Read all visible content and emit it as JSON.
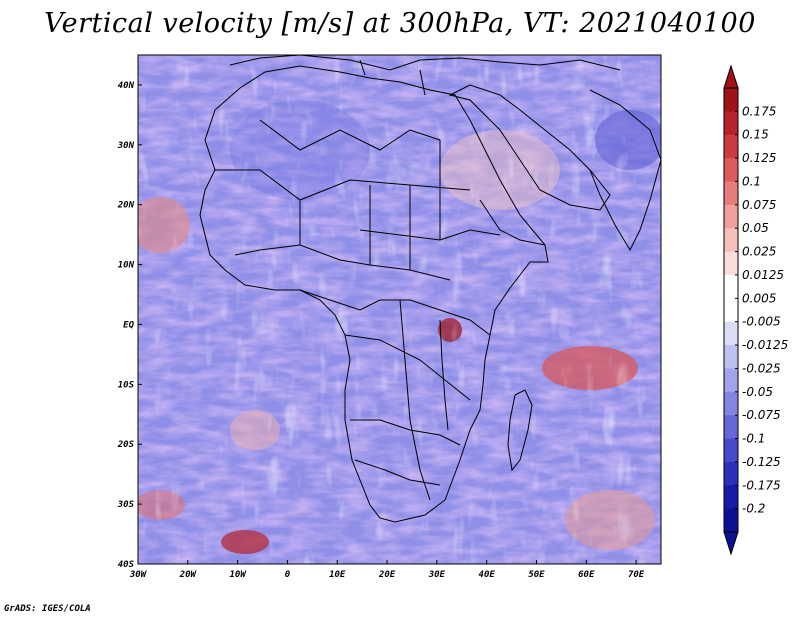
{
  "title": "Vertical velocity [m/s] at 300hPa, VT: 2021040100",
  "credit": "GrADS: IGES/COLA",
  "map": {
    "lat_labels": [
      "40N",
      "30N",
      "20N",
      "10N",
      "EQ",
      "10S",
      "20S",
      "30S",
      "40S"
    ],
    "lon_labels": [
      "30W",
      "20W",
      "10W",
      "0",
      "10E",
      "20E",
      "30E",
      "40E",
      "50E",
      "60E",
      "70E"
    ],
    "lat_range": [
      -40,
      45
    ],
    "lon_range": [
      -30,
      75
    ]
  },
  "colorbar": {
    "labels": [
      "0.175",
      "0.15",
      "0.125",
      "0.1",
      "0.075",
      "0.05",
      "0.025",
      "0.0125",
      "0.005",
      "-0.005",
      "-0.0125",
      "-0.025",
      "-0.05",
      "-0.075",
      "-0.1",
      "-0.125",
      "-0.175",
      "-0.2"
    ],
    "colors": [
      "#a01218",
      "#b8232a",
      "#cc3b3f",
      "#dc5a5c",
      "#e87c7b",
      "#f19f9c",
      "#f7c0bd",
      "#fbdcda",
      "#ffffff",
      "#ffffff",
      "#dcdcf7",
      "#bfc0f2",
      "#a2a3ec",
      "#8485e3",
      "#6667d9",
      "#4849cc",
      "#2e2fbb",
      "#1a1aa8",
      "#0f0f95"
    ],
    "top_triangle_color": "#a01218",
    "bottom_triangle_color": "#0f0f95"
  }
}
